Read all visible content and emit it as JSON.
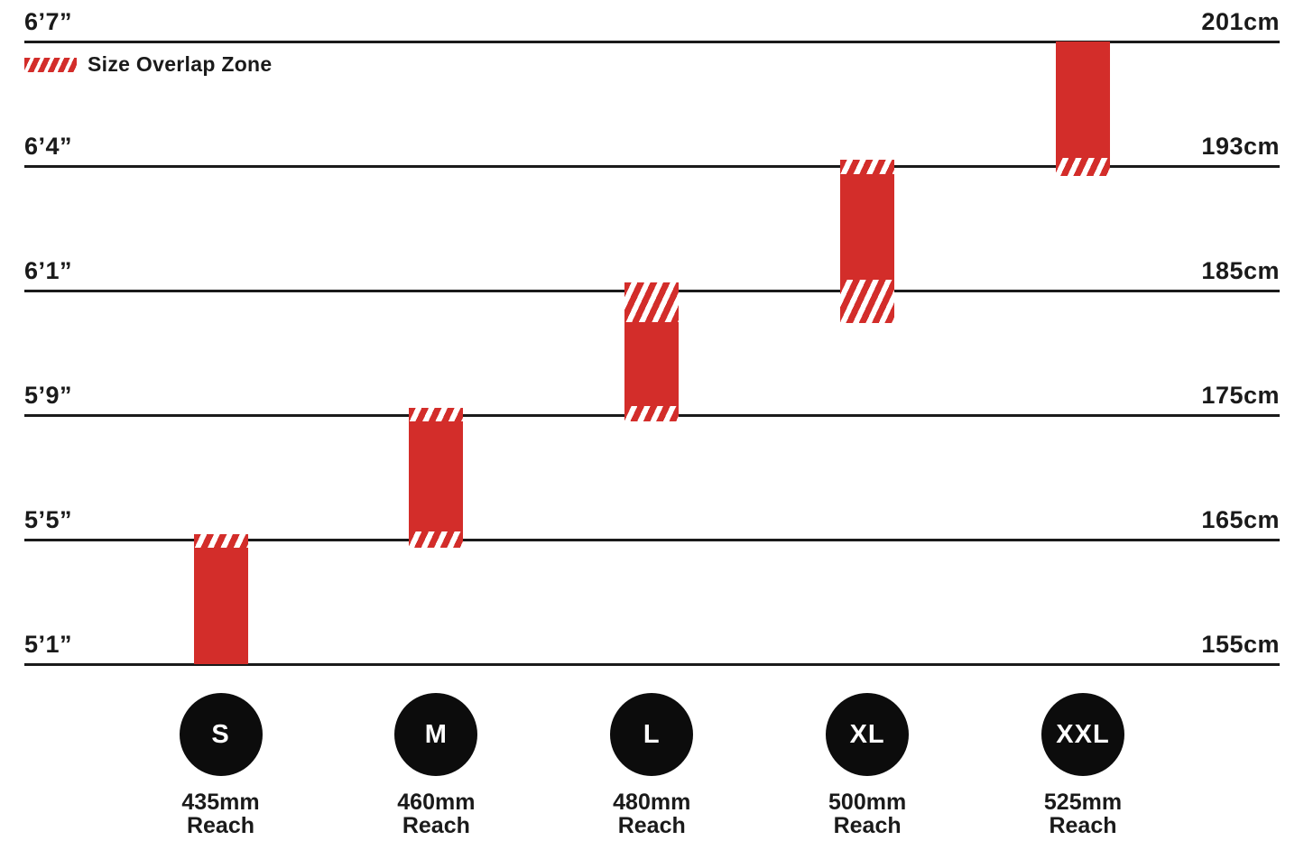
{
  "page": {
    "background": "#ffffff"
  },
  "legend": {
    "label": "Size Overlap Zone"
  },
  "colors": {
    "bar_red": "#d32d2a",
    "line_black": "#1a1a1a",
    "circle_black": "#0c0c0c",
    "circle_text": "#ffffff",
    "text_black": "#1a1a1a"
  },
  "chart_data": {
    "type": "bar",
    "subtype": "vertical-range-bars-rider-height",
    "title": "",
    "legend_entries": [
      {
        "label": "Size Overlap Zone",
        "swatch": "red-diagonal-hatch"
      }
    ],
    "axes": {
      "left_unit": "feet-inches",
      "right_unit": "centimeters",
      "grid": "horizontal-lines",
      "rows": [
        {
          "imperial": "6’7”",
          "metric": "201cm"
        },
        {
          "imperial": "6’4”",
          "metric": "193cm"
        },
        {
          "imperial": "6’1”",
          "metric": "185cm"
        },
        {
          "imperial": "5’9”",
          "metric": "175cm"
        },
        {
          "imperial": "5’5”",
          "metric": "165cm"
        },
        {
          "imperial": "5’1”",
          "metric": "155cm"
        }
      ]
    },
    "sizes": [
      {
        "label": "S",
        "reach_value": "435mm",
        "reach_word": "Reach",
        "segments": [
          {
            "style": "hatch",
            "from": 3.957,
            "to": 4.065
          },
          {
            "style": "solid",
            "from": 4.065,
            "to": 5.0
          }
        ]
      },
      {
        "label": "M",
        "reach_value": "460mm",
        "reach_word": "Reach",
        "segments": [
          {
            "style": "hatch",
            "from": 2.942,
            "to": 3.051
          },
          {
            "style": "solid",
            "from": 3.051,
            "to": 3.935
          },
          {
            "style": "hatch",
            "from": 3.935,
            "to": 4.065
          }
        ]
      },
      {
        "label": "L",
        "reach_value": "480mm",
        "reach_word": "Reach",
        "segments": [
          {
            "style": "hatch",
            "from": 1.935,
            "to": 2.254
          },
          {
            "style": "solid",
            "from": 2.254,
            "to": 2.928
          },
          {
            "style": "hatch",
            "from": 2.928,
            "to": 3.051
          }
        ]
      },
      {
        "label": "XL",
        "reach_value": "500mm",
        "reach_word": "Reach",
        "segments": [
          {
            "style": "hatch",
            "from": 0.949,
            "to": 1.065
          },
          {
            "style": "solid",
            "from": 1.065,
            "to": 1.913
          },
          {
            "style": "hatch",
            "from": 1.913,
            "to": 2.261
          }
        ]
      },
      {
        "label": "XXL",
        "reach_value": "525mm",
        "reach_word": "Reach",
        "segments": [
          {
            "style": "solid",
            "from": 0.0,
            "to": 0.935
          },
          {
            "style": "hatch",
            "from": 0.935,
            "to": 1.08
          }
        ]
      }
    ],
    "units_note": "segment from/to are in gridline row units: 0 = top line (6’7”/201cm), 5 = bottom line (5’1”/155cm)"
  }
}
